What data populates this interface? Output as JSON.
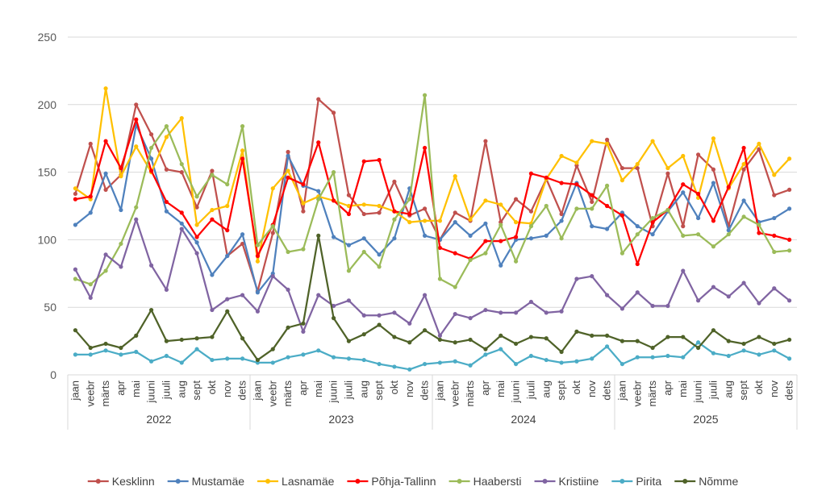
{
  "chart_data": {
    "type": "line",
    "title": "",
    "xlabel": "",
    "ylabel": "",
    "ylim": [
      0,
      250
    ],
    "yticks": [
      0,
      50,
      100,
      150,
      200,
      250
    ],
    "grid": true,
    "legend_position": "bottom",
    "years": [
      "2022",
      "2023",
      "2024",
      "2025"
    ],
    "months": [
      "jaan",
      "veebr",
      "märts",
      "apr",
      "mai",
      "juuni",
      "juuli",
      "aug",
      "sept",
      "okt",
      "nov",
      "dets"
    ],
    "series": [
      {
        "name": "Kesklinn",
        "color": "#c0504d",
        "values": [
          134,
          171,
          137,
          148,
          200,
          178,
          152,
          150,
          124,
          151,
          88,
          97,
          62,
          105,
          165,
          121,
          204,
          194,
          133,
          119,
          120,
          143,
          118,
          123,
          100,
          120,
          114,
          173,
          113,
          130,
          121,
          145,
          119,
          155,
          128,
          174,
          153,
          153,
          110,
          149,
          110,
          163,
          152,
          110,
          152,
          167,
          133,
          137
        ]
      },
      {
        "name": "Mustamäe",
        "color": "#4f81bd",
        "values": [
          111,
          120,
          149,
          122,
          185,
          160,
          121,
          112,
          98,
          74,
          88,
          104,
          61,
          75,
          162,
          140,
          136,
          102,
          96,
          101,
          89,
          101,
          138,
          103,
          100,
          113,
          103,
          112,
          81,
          100,
          101,
          103,
          114,
          142,
          110,
          108,
          120,
          110,
          104,
          121,
          135,
          116,
          142,
          107,
          129,
          113,
          116,
          123
        ]
      },
      {
        "name": "Lasnamäe",
        "color": "#ffc000",
        "values": [
          138,
          130,
          212,
          147,
          169,
          150,
          176,
          190,
          111,
          122,
          125,
          166,
          84,
          138,
          151,
          127,
          132,
          129,
          125,
          126,
          125,
          121,
          113,
          114,
          114,
          147,
          115,
          129,
          126,
          113,
          112,
          145,
          162,
          157,
          173,
          171,
          144,
          156,
          173,
          153,
          162,
          131,
          175,
          138,
          156,
          171,
          148,
          160
        ]
      },
      {
        "name": "Põhja-Tallinn",
        "color": "#ff0000",
        "values": [
          130,
          132,
          173,
          153,
          189,
          151,
          128,
          120,
          102,
          115,
          107,
          160,
          88,
          111,
          146,
          141,
          172,
          129,
          119,
          158,
          159,
          121,
          119,
          168,
          94,
          90,
          86,
          99,
          99,
          102,
          149,
          146,
          142,
          141,
          133,
          125,
          118,
          82,
          113,
          122,
          141,
          134,
          114,
          139,
          168,
          105,
          103,
          100
        ]
      },
      {
        "name": "Haabersti",
        "color": "#9bbb59",
        "values": [
          71,
          67,
          77,
          97,
          124,
          168,
          184,
          156,
          132,
          148,
          141,
          184,
          96,
          110,
          91,
          93,
          130,
          150,
          77,
          91,
          80,
          115,
          130,
          207,
          71,
          65,
          85,
          90,
          111,
          84,
          110,
          125,
          101,
          123,
          123,
          140,
          90,
          104,
          116,
          122,
          103,
          104,
          95,
          104,
          117,
          111,
          91,
          92
        ]
      },
      {
        "name": "Kristiine",
        "color": "#8064a2",
        "values": [
          78,
          57,
          89,
          80,
          115,
          81,
          63,
          108,
          90,
          48,
          56,
          59,
          47,
          73,
          63,
          32,
          59,
          51,
          55,
          44,
          44,
          46,
          38,
          59,
          29,
          45,
          42,
          48,
          46,
          46,
          54,
          46,
          47,
          71,
          73,
          59,
          49,
          61,
          51,
          51,
          77,
          55,
          65,
          58,
          68,
          53,
          64,
          55
        ]
      },
      {
        "name": "Pirita",
        "color": "#4bacc6",
        "values": [
          15,
          15,
          18,
          15,
          17,
          10,
          14,
          9,
          19,
          11,
          12,
          12,
          9,
          9,
          13,
          15,
          18,
          13,
          12,
          11,
          8,
          6,
          4,
          8,
          9,
          10,
          7,
          15,
          19,
          8,
          14,
          11,
          9,
          10,
          12,
          21,
          8,
          13,
          13,
          14,
          13,
          24,
          16,
          14,
          18,
          15,
          18,
          12
        ]
      },
      {
        "name": "Nõmme",
        "color": "#4f6228",
        "values": [
          33,
          20,
          23,
          20,
          29,
          48,
          25,
          26,
          27,
          28,
          47,
          27,
          11,
          19,
          35,
          38,
          103,
          42,
          25,
          30,
          37,
          28,
          24,
          33,
          26,
          24,
          26,
          19,
          29,
          23,
          28,
          27,
          17,
          32,
          29,
          29,
          25,
          25,
          20,
          28,
          28,
          20,
          33,
          25,
          23,
          28,
          23,
          26
        ]
      }
    ]
  }
}
